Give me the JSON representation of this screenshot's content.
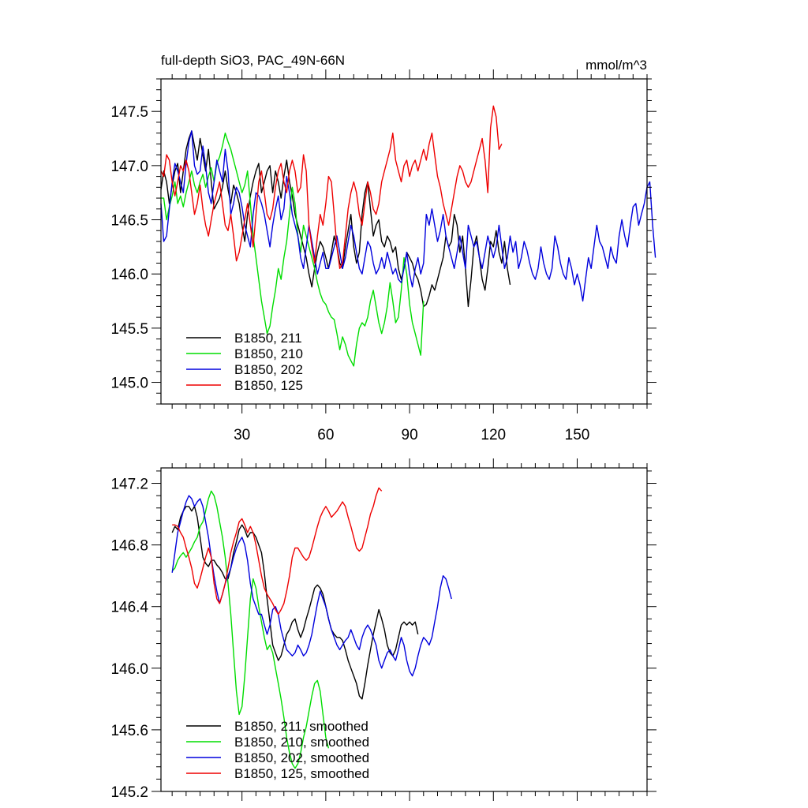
{
  "chart_data": [
    {
      "type": "line",
      "title": "full-depth SiO3, PAC_49N-66N",
      "units": "mmol/m^3",
      "xlim": [
        1,
        175
      ],
      "ylim": [
        144.8,
        147.8
      ],
      "x_ticks": [
        30,
        60,
        90,
        120,
        150
      ],
      "y_ticks": [
        "145.0",
        "145.5",
        "146.0",
        "146.5",
        "147.0",
        "147.5"
      ],
      "legend_position": "bottom-left",
      "series": [
        {
          "name": "B1850, 211",
          "color": "#000000",
          "x_start": 1,
          "values": [
            146.78,
            146.95,
            146.85,
            146.65,
            146.82,
            146.95,
            147.02,
            146.75,
            146.95,
            147.15,
            147.25,
            147.32,
            147.18,
            147.05,
            147.25,
            147.1,
            146.95,
            147.15,
            146.85,
            146.6,
            146.65,
            146.7,
            146.8,
            146.95,
            146.78,
            146.65,
            146.82,
            146.75,
            146.65,
            146.45,
            146.3,
            146.55,
            146.72,
            146.85,
            146.95,
            147.02,
            146.75,
            146.85,
            146.95,
            147.0,
            146.75,
            146.95,
            146.85,
            146.7,
            146.9,
            147.05,
            146.85,
            146.72,
            146.55,
            146.45,
            146.35,
            146.25,
            146.15,
            146.0,
            145.88,
            146.05,
            146.2,
            146.3,
            146.25,
            146.15,
            146.05,
            146.2,
            146.35,
            146.25,
            146.1,
            146.05,
            146.25,
            146.4,
            146.55,
            146.25,
            146.1,
            146.2,
            146.55,
            146.75,
            146.85,
            146.6,
            146.35,
            146.45,
            146.5,
            146.3,
            146.25,
            146.35,
            146.3,
            146.2,
            146.25,
            146.05,
            145.95,
            146.05,
            146.2,
            146.15,
            146.1,
            146.0,
            145.95,
            145.85,
            145.7,
            145.72,
            145.8,
            145.9,
            145.85,
            145.95,
            146.05,
            146.15,
            146.35,
            146.25,
            146.3,
            146.55,
            146.45,
            146.2,
            146.35,
            146.05,
            145.7,
            145.95,
            146.25,
            146.35,
            146.15,
            145.95,
            145.85,
            146.05,
            146.3,
            146.25,
            146.4,
            146.2,
            146.1,
            146.3,
            146.05,
            145.9
          ]
        },
        {
          "name": "B1850, 210",
          "color": "#00dd00",
          "x_start": 1,
          "values": [
            146.7,
            146.7,
            146.5,
            146.62,
            146.72,
            146.85,
            146.65,
            146.72,
            146.62,
            146.75,
            146.85,
            146.95,
            146.82,
            146.75,
            146.85,
            146.92,
            146.8,
            146.9,
            146.98,
            146.85,
            147.02,
            147.08,
            147.18,
            147.3,
            147.22,
            147.15,
            147.05,
            146.95,
            146.85,
            146.75,
            146.82,
            146.95,
            146.65,
            146.35,
            146.15,
            145.95,
            145.75,
            145.6,
            145.45,
            145.52,
            145.7,
            145.85,
            146.05,
            145.95,
            146.15,
            146.3,
            146.55,
            146.8,
            146.65,
            146.35,
            146.2,
            146.45,
            146.35,
            146.25,
            146.15,
            146.05,
            145.92,
            145.82,
            145.75,
            145.72,
            145.65,
            145.6,
            145.58,
            145.45,
            145.3,
            145.42,
            145.35,
            145.25,
            145.2,
            145.15,
            145.35,
            145.5,
            145.55,
            145.52,
            145.6,
            145.75,
            145.85,
            145.7,
            145.55,
            145.45,
            145.55,
            145.7,
            145.92,
            145.75,
            145.55,
            145.6,
            145.85,
            146.15,
            146.0,
            145.72,
            145.55,
            145.45,
            145.35,
            145.25,
            145.75
          ]
        },
        {
          "name": "B1850, 202",
          "color": "#0000dd",
          "x_start": 1,
          "values": [
            146.65,
            146.3,
            146.35,
            146.6,
            146.85,
            147.02,
            146.95,
            146.85,
            146.75,
            147.02,
            147.22,
            147.32,
            147.0,
            146.92,
            146.95,
            147.18,
            147.0,
            146.75,
            146.65,
            146.85,
            147.05,
            146.95,
            146.85,
            147.15,
            146.95,
            146.55,
            146.65,
            146.8,
            146.75,
            146.62,
            146.45,
            146.35,
            146.25,
            146.55,
            146.75,
            146.72,
            146.65,
            146.55,
            146.4,
            146.25,
            146.45,
            146.6,
            146.72,
            146.5,
            146.6,
            146.9,
            146.75,
            146.55,
            146.45,
            146.35,
            146.15,
            146.05,
            146.25,
            146.45,
            146.3,
            146.15,
            146.0,
            146.1,
            146.2,
            146.05,
            146.05,
            146.15,
            146.25,
            146.35,
            146.2,
            146.05,
            146.15,
            146.3,
            146.45,
            146.35,
            146.2,
            146.05,
            146.0,
            146.15,
            146.3,
            146.25,
            146.1,
            146.0,
            146.05,
            146.15,
            146.05,
            146.2,
            146.1,
            146.0,
            146.05,
            145.95,
            145.92,
            146.05,
            146.2,
            146.0,
            145.88,
            146.05,
            146.15,
            146.0,
            146.1,
            146.55,
            146.45,
            146.6,
            146.45,
            146.3,
            146.4,
            146.55,
            146.35,
            146.25,
            146.15,
            146.05,
            146.2,
            146.35,
            146.2,
            146.05,
            146.45,
            146.35,
            146.25,
            146.3,
            146.15,
            146.05,
            146.2,
            146.35,
            146.25,
            146.15,
            146.25,
            146.45,
            146.25,
            146.05,
            146.15,
            146.35,
            146.2,
            146.3,
            146.05,
            146.15,
            146.3,
            146.22,
            146.1,
            146.0,
            145.95,
            146.05,
            146.25,
            146.1,
            146.0,
            145.95,
            146.05,
            146.35,
            146.25,
            146.1,
            146.0,
            145.95,
            146.15,
            146.05,
            145.9,
            146.0,
            145.9,
            145.75,
            145.95,
            146.15,
            146.05,
            146.25,
            146.45,
            146.3,
            146.25,
            146.15,
            146.05,
            146.25,
            146.15,
            146.1,
            146.35,
            146.5,
            146.35,
            146.25,
            146.45,
            146.62,
            146.65,
            146.45,
            146.55,
            146.65,
            146.8,
            146.85,
            146.45,
            146.15
          ]
        },
        {
          "name": "B1850, 125",
          "color": "#ee0000",
          "x_start": 1,
          "values": [
            146.95,
            146.9,
            147.1,
            147.05,
            146.85,
            146.72,
            146.85,
            147.0,
            146.95,
            147.05,
            146.95,
            146.75,
            146.55,
            146.65,
            146.82,
            146.6,
            146.45,
            146.35,
            146.5,
            146.65,
            146.75,
            146.85,
            146.65,
            146.45,
            146.4,
            146.55,
            146.35,
            146.12,
            146.2,
            146.35,
            146.5,
            146.65,
            146.45,
            146.25,
            146.55,
            146.85,
            146.95,
            146.75,
            146.55,
            146.5,
            146.6,
            146.8,
            146.95,
            147.02,
            146.85,
            146.75,
            146.95,
            147.05,
            146.95,
            146.75,
            146.8,
            147.1,
            146.95,
            146.45,
            146.25,
            146.1,
            146.35,
            146.55,
            146.45,
            146.65,
            146.9,
            146.85,
            146.55,
            146.25,
            146.05,
            146.1,
            146.35,
            146.6,
            146.75,
            146.85,
            146.75,
            146.55,
            146.45,
            146.65,
            146.85,
            146.75,
            146.6,
            146.55,
            146.65,
            146.85,
            146.95,
            147.05,
            147.15,
            147.3,
            147.05,
            146.95,
            146.85,
            147.0,
            147.05,
            146.9,
            147.0,
            147.05,
            146.95,
            147.05,
            147.15,
            147.05,
            147.2,
            147.3,
            147.1,
            146.9,
            146.8,
            146.65,
            146.55,
            146.45,
            146.6,
            146.75,
            146.9,
            147.0,
            146.95,
            146.85,
            146.8,
            146.85,
            146.95,
            147.05,
            147.15,
            147.25,
            147.05,
            146.75,
            147.35,
            147.55,
            147.45,
            147.15,
            147.2
          ]
        }
      ]
    },
    {
      "type": "line",
      "xlim": [
        1,
        175
      ],
      "ylim": [
        145.2,
        147.3
      ],
      "y_ticks": [
        "145.2",
        "145.6",
        "146.0",
        "146.4",
        "146.8",
        "147.2"
      ],
      "legend_position": "bottom-left",
      "series": [
        {
          "name": "B1850, 211, smoothed",
          "color": "#000000",
          "x_start": 5,
          "values": [
            146.88,
            146.92,
            146.9,
            146.98,
            147.02,
            147.05,
            147.05,
            147.02,
            147.05,
            146.98,
            146.85,
            146.72,
            146.68,
            146.66,
            146.7,
            146.7,
            146.67,
            146.65,
            146.62,
            146.58,
            146.58,
            146.65,
            146.75,
            146.82,
            146.9,
            146.93,
            146.9,
            146.85,
            146.88,
            146.88,
            146.85,
            146.8,
            146.75,
            146.62,
            146.45,
            146.3,
            146.15,
            146.1,
            146.05,
            146.08,
            146.15,
            146.22,
            146.25,
            146.3,
            146.32,
            146.25,
            146.2,
            146.25,
            146.32,
            146.38,
            146.45,
            146.52,
            146.54,
            146.52,
            146.48,
            146.4,
            146.32,
            146.25,
            146.22,
            146.2,
            146.2,
            146.18,
            146.12,
            146.05,
            146.0,
            145.95,
            145.9,
            145.82,
            145.8,
            145.9,
            146.02,
            146.12,
            146.22,
            146.3,
            146.38,
            146.32,
            146.25,
            146.15,
            146.1,
            146.08,
            146.12,
            146.2,
            146.28,
            146.3,
            146.28,
            146.3,
            146.28,
            146.3,
            146.22
          ]
        },
        {
          "name": "B1850, 210, smoothed",
          "color": "#00dd00",
          "x_start": 5,
          "values": [
            146.63,
            146.65,
            146.7,
            146.73,
            146.75,
            146.72,
            146.75,
            146.78,
            146.82,
            146.85,
            146.92,
            146.95,
            147.02,
            147.1,
            147.15,
            147.12,
            147.05,
            146.95,
            146.85,
            146.72,
            146.55,
            146.35,
            146.1,
            145.85,
            145.7,
            145.75,
            145.95,
            146.2,
            146.45,
            146.58,
            146.52,
            146.4,
            146.3,
            146.2,
            146.12,
            146.15,
            146.1,
            146.0,
            145.9,
            145.8,
            145.68,
            145.55,
            145.45,
            145.38,
            145.35,
            145.38,
            145.45,
            145.55,
            145.62,
            145.72,
            145.82,
            145.9,
            145.92,
            145.85,
            145.7,
            145.55,
            145.48
          ]
        },
        {
          "name": "B1850, 202, smoothed",
          "color": "#0000dd",
          "x_start": 5,
          "values": [
            146.62,
            146.75,
            146.88,
            146.95,
            147.02,
            147.08,
            147.12,
            147.1,
            147.05,
            147.08,
            147.1,
            147.05,
            146.95,
            146.85,
            146.72,
            146.6,
            146.5,
            146.42,
            146.48,
            146.55,
            146.6,
            146.65,
            146.72,
            146.78,
            146.82,
            146.85,
            146.8,
            146.7,
            146.55,
            146.45,
            146.4,
            146.35,
            146.35,
            146.28,
            146.22,
            146.28,
            146.38,
            146.4,
            146.35,
            146.25,
            146.18,
            146.12,
            146.1,
            146.08,
            146.1,
            146.15,
            146.12,
            146.08,
            146.1,
            146.15,
            146.22,
            146.32,
            146.42,
            146.5,
            146.45,
            146.4,
            146.32,
            146.25,
            146.2,
            146.15,
            146.12,
            146.15,
            146.18,
            146.2,
            146.25,
            146.2,
            146.15,
            146.12,
            146.2,
            146.25,
            146.28,
            146.25,
            146.2,
            146.15,
            146.05,
            146.0,
            146.05,
            146.1,
            146.12,
            146.08,
            146.05,
            146.12,
            146.2,
            146.15,
            146.05,
            145.98,
            145.95,
            146.0,
            146.08,
            146.15,
            146.2,
            146.18,
            146.15,
            146.2,
            146.3,
            146.4,
            146.52,
            146.6,
            146.58,
            146.52,
            146.45
          ]
        },
        {
          "name": "B1850, 125, smoothed",
          "color": "#ee0000",
          "x_start": 5,
          "values": [
            146.93,
            146.93,
            146.92,
            146.88,
            146.85,
            146.78,
            146.72,
            146.65,
            146.55,
            146.52,
            146.58,
            146.65,
            146.72,
            146.78,
            146.72,
            146.55,
            146.45,
            146.42,
            146.48,
            146.55,
            146.65,
            146.75,
            146.82,
            146.88,
            146.95,
            146.97,
            146.93,
            146.88,
            146.92,
            146.88,
            146.8,
            146.7,
            146.6,
            146.52,
            146.48,
            146.45,
            146.42,
            146.38,
            146.35,
            146.38,
            146.42,
            146.5,
            146.6,
            146.72,
            146.78,
            146.78,
            146.75,
            146.72,
            146.7,
            146.72,
            146.78,
            146.85,
            146.92,
            146.98,
            147.02,
            147.05,
            147.02,
            146.98,
            147.0,
            147.02,
            147.05,
            147.08,
            147.05,
            146.98,
            146.92,
            146.85,
            146.78,
            146.76,
            146.78,
            146.85,
            146.92,
            147.0,
            147.05,
            147.12,
            147.17,
            147.15
          ]
        }
      ]
    }
  ]
}
